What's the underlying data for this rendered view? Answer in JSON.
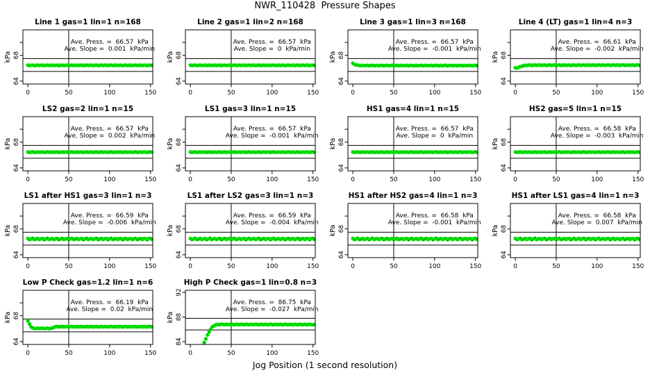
{
  "title": "NWR_110428  Pressure Shapes",
  "xlabel": "Jog Position (1 second resolution)",
  "colors": {
    "point_green": "#00E600",
    "point_dot": "#000000",
    "axis": "#000000"
  },
  "chart_data": [
    {
      "type": "scatter",
      "title": "Line 1 gas=1 lin=1 n=168",
      "gas": 1,
      "lin": 1,
      "n": 168,
      "ave_press_kpa": 66.57,
      "ave_slope_kpa_min": 0.001,
      "press_label": "Ave. Press. =  66.57  kPa",
      "slope_label": "Ave. Slope =  0.001  kPa/min",
      "ylabel": "kPa",
      "ylim": [
        63.55,
        71.95
      ],
      "yticks": [
        {
          "v": 70,
          "label": ""
        },
        {
          "v": 68,
          "label": "68"
        },
        {
          "v": 64,
          "label": "64"
        }
      ],
      "xlim": [
        -6,
        152.8
      ],
      "xticks": [
        0,
        50,
        100,
        150
      ],
      "vline_x": 50,
      "ref_lines": [
        65.5,
        67.5
      ],
      "anchors": [
        [
          0,
          66.45
        ],
        [
          152,
          66.45
        ]
      ],
      "x_start": 0,
      "x_end": 152,
      "x_step": 2,
      "jitter": 0.035,
      "dot_spread": 0.9
    },
    {
      "type": "scatter",
      "title": "Line 2 gas=1 lin=2 n=168",
      "gas": 1,
      "lin": 2,
      "n": 168,
      "ave_press_kpa": 66.57,
      "ave_slope_kpa_min": 0,
      "press_label": "Ave. Press. =  66.57  kPa",
      "slope_label": "Ave. Slope =  0  kPa/min",
      "ylabel": "kPa",
      "ylim": [
        63.55,
        71.95
      ],
      "yticks": [
        {
          "v": 70,
          "label": ""
        },
        {
          "v": 68,
          "label": "68"
        },
        {
          "v": 64,
          "label": "64"
        }
      ],
      "xlim": [
        -6,
        152.8
      ],
      "xticks": [
        0,
        50,
        100,
        150
      ],
      "vline_x": 50,
      "ref_lines": [
        65.5,
        67.5
      ],
      "anchors": [
        [
          0,
          66.45
        ],
        [
          152,
          66.45
        ]
      ],
      "x_start": 0,
      "x_end": 152,
      "x_step": 2,
      "jitter": 0.035,
      "dot_spread": 0.9
    },
    {
      "type": "scatter",
      "title": "Line 3 gas=1 lin=3 n=168",
      "gas": 1,
      "lin": 3,
      "n": 168,
      "ave_press_kpa": 66.57,
      "ave_slope_kpa_min": -0.001,
      "press_label": "Ave. Press. =  66.57  kPa",
      "slope_label": "Ave. Slope =  -0.001  kPa/min",
      "ylabel": "kPa",
      "ylim": [
        63.55,
        71.95
      ],
      "yticks": [
        {
          "v": 70,
          "label": ""
        },
        {
          "v": 68,
          "label": "68"
        },
        {
          "v": 64,
          "label": "64"
        }
      ],
      "xlim": [
        -6,
        152.8
      ],
      "xticks": [
        0,
        50,
        100,
        150
      ],
      "vline_x": 50,
      "ref_lines": [
        65.5,
        67.5
      ],
      "anchors": [
        [
          0,
          66.75
        ],
        [
          2,
          66.62
        ],
        [
          4,
          66.5
        ],
        [
          7,
          66.44
        ],
        [
          12,
          66.42
        ],
        [
          152,
          66.42
        ]
      ],
      "x_start": 0,
      "x_end": 152,
      "x_step": 2,
      "jitter": 0.035,
      "dot_spread": 0.9
    },
    {
      "type": "scatter",
      "title": "Line 4 (LT) gas=1 lin=4 n=3",
      "gas": 1,
      "lin": 4,
      "n": 3,
      "ave_press_kpa": 66.61,
      "ave_slope_kpa_min": -0.002,
      "press_label": "Ave. Press. =  66.61  kPa",
      "slope_label": "Ave. Slope =  -0.002  kPa/min",
      "ylabel": "kPa",
      "ylim": [
        63.55,
        71.95
      ],
      "yticks": [
        {
          "v": 70,
          "label": ""
        },
        {
          "v": 68,
          "label": "68"
        },
        {
          "v": 64,
          "label": "64"
        }
      ],
      "xlim": [
        -6,
        152.8
      ],
      "xticks": [
        0,
        50,
        100,
        150
      ],
      "vline_x": 50,
      "ref_lines": [
        65.5,
        67.5
      ],
      "anchors": [
        [
          0,
          66.05
        ],
        [
          2,
          66.07
        ],
        [
          4,
          66.13
        ],
        [
          6,
          66.22
        ],
        [
          8,
          66.32
        ],
        [
          10,
          66.4
        ],
        [
          13,
          66.45
        ],
        [
          18,
          66.47
        ],
        [
          152,
          66.48
        ]
      ],
      "x_start": 0,
      "x_end": 152,
      "x_step": 2,
      "jitter": 0.035,
      "dot_spread": 0.9
    },
    {
      "type": "scatter",
      "title": "LS2 gas=2 lin=1 n=15",
      "gas": 2,
      "lin": 1,
      "n": 15,
      "ave_press_kpa": 66.57,
      "ave_slope_kpa_min": 0.002,
      "press_label": "Ave. Press. =  66.57  kPa",
      "slope_label": "Ave. Slope =  0.002  kPa/min",
      "ylabel": "kPa",
      "ylim": [
        63.55,
        71.95
      ],
      "yticks": [
        {
          "v": 70,
          "label": ""
        },
        {
          "v": 68,
          "label": "68"
        },
        {
          "v": 64,
          "label": "64"
        }
      ],
      "xlim": [
        -6,
        152.8
      ],
      "xticks": [
        0,
        50,
        100,
        150
      ],
      "vline_x": 50,
      "ref_lines": [
        65.5,
        67.5
      ],
      "anchors": [
        [
          0,
          66.45
        ],
        [
          152,
          66.45
        ]
      ],
      "x_start": 0,
      "x_end": 152,
      "x_step": 2,
      "jitter": 0.035,
      "dot_spread": 0.9
    },
    {
      "type": "scatter",
      "title": "LS1 gas=3 lin=1 n=15",
      "gas": 3,
      "lin": 1,
      "n": 15,
      "ave_press_kpa": 66.57,
      "ave_slope_kpa_min": -0.001,
      "press_label": "Ave. Press. =  66.57  kPa",
      "slope_label": "Ave. Slope =  -0.001  kPa/min",
      "ylabel": "kPa",
      "ylim": [
        63.55,
        71.95
      ],
      "yticks": [
        {
          "v": 70,
          "label": ""
        },
        {
          "v": 68,
          "label": "68"
        },
        {
          "v": 64,
          "label": "64"
        }
      ],
      "xlim": [
        -6,
        152.8
      ],
      "xticks": [
        0,
        50,
        100,
        150
      ],
      "vline_x": 50,
      "ref_lines": [
        65.5,
        67.5
      ],
      "anchors": [
        [
          0,
          66.45
        ],
        [
          152,
          66.45
        ]
      ],
      "x_start": 0,
      "x_end": 152,
      "x_step": 2,
      "jitter": 0.035,
      "dot_spread": 0.9
    },
    {
      "type": "scatter",
      "title": "HS1 gas=4 lin=1 n=15",
      "gas": 4,
      "lin": 1,
      "n": 15,
      "ave_press_kpa": 66.57,
      "ave_slope_kpa_min": 0,
      "press_label": "Ave. Press. =  66.57  kPa",
      "slope_label": "Ave. Slope =  0  kPa/min",
      "ylabel": "kPa",
      "ylim": [
        63.55,
        71.95
      ],
      "yticks": [
        {
          "v": 70,
          "label": ""
        },
        {
          "v": 68,
          "label": "68"
        },
        {
          "v": 64,
          "label": "64"
        }
      ],
      "xlim": [
        -6,
        152.8
      ],
      "xticks": [
        0,
        50,
        100,
        150
      ],
      "vline_x": 50,
      "ref_lines": [
        65.5,
        67.5
      ],
      "anchors": [
        [
          0,
          66.45
        ],
        [
          152,
          66.45
        ]
      ],
      "x_start": 0,
      "x_end": 152,
      "x_step": 2,
      "jitter": 0.035,
      "dot_spread": 0.9
    },
    {
      "type": "scatter",
      "title": "HS2 gas=5 lin=1 n=15",
      "gas": 5,
      "lin": 1,
      "n": 15,
      "ave_press_kpa": 66.58,
      "ave_slope_kpa_min": -0.003,
      "press_label": "Ave. Press. =  66.58  kPa",
      "slope_label": "Ave. Slope =  -0.003  kPa/min",
      "ylabel": "kPa",
      "ylim": [
        63.55,
        71.95
      ],
      "yticks": [
        {
          "v": 70,
          "label": ""
        },
        {
          "v": 68,
          "label": "68"
        },
        {
          "v": 64,
          "label": "64"
        }
      ],
      "xlim": [
        -6,
        152.8
      ],
      "xticks": [
        0,
        50,
        100,
        150
      ],
      "vline_x": 50,
      "ref_lines": [
        65.5,
        67.5
      ],
      "anchors": [
        [
          0,
          66.45
        ],
        [
          152,
          66.45
        ]
      ],
      "x_start": 0,
      "x_end": 152,
      "x_step": 2,
      "jitter": 0.035,
      "dot_spread": 0.9
    },
    {
      "type": "scatter",
      "title": "LS1 after HS1 gas=3 lin=1 n=3",
      "gas": 3,
      "lin": 1,
      "n": 3,
      "ave_press_kpa": 66.59,
      "ave_slope_kpa_min": -0.006,
      "press_label": "Ave. Press. =  66.59  kPa",
      "slope_label": "Ave. Slope =  -0.006  kPa/min",
      "ylabel": "kPa",
      "ylim": [
        63.55,
        71.95
      ],
      "yticks": [
        {
          "v": 70,
          "label": ""
        },
        {
          "v": 68,
          "label": "68"
        },
        {
          "v": 64,
          "label": "64"
        }
      ],
      "xlim": [
        -6,
        152.8
      ],
      "xticks": [
        0,
        50,
        100,
        150
      ],
      "vline_x": 50,
      "ref_lines": [
        65.5,
        67.5
      ],
      "anchors": [
        [
          0,
          66.45
        ],
        [
          152,
          66.45
        ]
      ],
      "x_start": 0,
      "x_end": 152,
      "x_step": 2,
      "jitter": 0.09,
      "dot_spread": 1.7
    },
    {
      "type": "scatter",
      "title": "LS1 after LS2 gas=3 lin=1 n=3",
      "gas": 3,
      "lin": 1,
      "n": 3,
      "ave_press_kpa": 66.59,
      "ave_slope_kpa_min": -0.004,
      "press_label": "Ave. Press. =  66.59  kPa",
      "slope_label": "Ave. Slope =  -0.004  kPa/min",
      "ylabel": "kPa",
      "ylim": [
        63.55,
        71.95
      ],
      "yticks": [
        {
          "v": 70,
          "label": ""
        },
        {
          "v": 68,
          "label": "68"
        },
        {
          "v": 64,
          "label": "64"
        }
      ],
      "xlim": [
        -6,
        152.8
      ],
      "xticks": [
        0,
        50,
        100,
        150
      ],
      "vline_x": 50,
      "ref_lines": [
        65.5,
        67.5
      ],
      "anchors": [
        [
          0,
          66.45
        ],
        [
          152,
          66.45
        ]
      ],
      "x_start": 0,
      "x_end": 152,
      "x_step": 2,
      "jitter": 0.09,
      "dot_spread": 1.7
    },
    {
      "type": "scatter",
      "title": "HS1 after HS2 gas=4 lin=1 n=3",
      "gas": 4,
      "lin": 1,
      "n": 3,
      "ave_press_kpa": 66.58,
      "ave_slope_kpa_min": -0.001,
      "press_label": "Ave. Press. =  66.58  kPa",
      "slope_label": "Ave. Slope =  -0.001  kPa/min",
      "ylabel": "kPa",
      "ylim": [
        63.55,
        71.95
      ],
      "yticks": [
        {
          "v": 70,
          "label": ""
        },
        {
          "v": 68,
          "label": "68"
        },
        {
          "v": 64,
          "label": "64"
        }
      ],
      "xlim": [
        -6,
        152.8
      ],
      "xticks": [
        0,
        50,
        100,
        150
      ],
      "vline_x": 50,
      "ref_lines": [
        65.5,
        67.5
      ],
      "anchors": [
        [
          0,
          66.45
        ],
        [
          152,
          66.45
        ]
      ],
      "x_start": 0,
      "x_end": 152,
      "x_step": 2,
      "jitter": 0.09,
      "dot_spread": 1.7
    },
    {
      "type": "scatter",
      "title": "HS1 after LS1 gas=4 lin=1 n=3",
      "gas": 4,
      "lin": 1,
      "n": 3,
      "ave_press_kpa": 66.58,
      "ave_slope_kpa_min": 0.007,
      "press_label": "Ave. Press. =  66.58  kPa",
      "slope_label": "Ave. Slope =  0.007  kPa/min",
      "ylabel": "kPa",
      "ylim": [
        63.55,
        71.95
      ],
      "yticks": [
        {
          "v": 70,
          "label": ""
        },
        {
          "v": 68,
          "label": "68"
        },
        {
          "v": 64,
          "label": "64"
        }
      ],
      "xlim": [
        -6,
        152.8
      ],
      "xticks": [
        0,
        50,
        100,
        150
      ],
      "vline_x": 50,
      "ref_lines": [
        65.5,
        67.5
      ],
      "anchors": [
        [
          0,
          66.45
        ],
        [
          152,
          66.45
        ]
      ],
      "x_start": 0,
      "x_end": 152,
      "x_step": 2,
      "jitter": 0.09,
      "dot_spread": 1.7
    },
    {
      "type": "scatter",
      "title": "Low P Check gas=1.2 lin=1 n=6",
      "gas": 1.2,
      "lin": 1,
      "n": 6,
      "ave_press_kpa": 66.19,
      "ave_slope_kpa_min": 0.02,
      "press_label": "Ave. Press. =  66.19  kPa",
      "slope_label": "Ave. Slope =  0.02  kPa/min",
      "ylabel": "kPa",
      "ylim": [
        63.55,
        71.95
      ],
      "yticks": [
        {
          "v": 70,
          "label": ""
        },
        {
          "v": 68,
          "label": "68"
        },
        {
          "v": 64,
          "label": "64"
        }
      ],
      "xlim": [
        -6,
        152.8
      ],
      "xticks": [
        0,
        50,
        100,
        150
      ],
      "vline_x": 50,
      "ref_lines": [
        65.5,
        67.5
      ],
      "anchors": [
        [
          0,
          67.2
        ],
        [
          1,
          67.05
        ],
        [
          2,
          66.75
        ],
        [
          3,
          66.45
        ],
        [
          4,
          66.25
        ],
        [
          5,
          66.12
        ],
        [
          7,
          66.05
        ],
        [
          28,
          66.03
        ],
        [
          30,
          66.1
        ],
        [
          32,
          66.22
        ],
        [
          34,
          66.3
        ],
        [
          152,
          66.3
        ]
      ],
      "x_start": 0,
      "x_end": 152,
      "x_step": 2,
      "jitter": 0.03,
      "dot_spread": 0.9
    },
    {
      "type": "scatter",
      "title": "High P Check gas=1 lin=0.8 n=3",
      "gas": 1,
      "lin": 0.8,
      "n": 3,
      "ave_press_kpa": 86.75,
      "ave_slope_kpa_min": -0.027,
      "press_label": "Ave. Press. =  86.75  kPa",
      "slope_label": "Ave. Slope =  -0.027  kPa/min",
      "ylabel": "kPa",
      "ylim": [
        83.55,
        92.35
      ],
      "yticks": [
        {
          "v": 92,
          "label": "92"
        },
        {
          "v": 88,
          "label": "88"
        },
        {
          "v": 84,
          "label": "84"
        }
      ],
      "xlim": [
        -6,
        152.8
      ],
      "xticks": [
        0,
        50,
        100,
        150
      ],
      "vline_x": 50,
      "ref_lines": [
        85.9,
        87.8
      ],
      "anchors": [
        [
          15,
          83.3
        ],
        [
          17,
          83.9
        ],
        [
          19,
          84.45
        ],
        [
          21,
          85.05
        ],
        [
          23,
          85.6
        ],
        [
          25,
          86.05
        ],
        [
          27,
          86.4
        ],
        [
          29,
          86.6
        ],
        [
          31,
          86.72
        ],
        [
          34,
          86.8
        ],
        [
          152,
          86.78
        ]
      ],
      "x_start": 15,
      "x_end": 152,
      "x_step": 2,
      "jitter": 0.04,
      "dot_spread": 0.9
    }
  ]
}
